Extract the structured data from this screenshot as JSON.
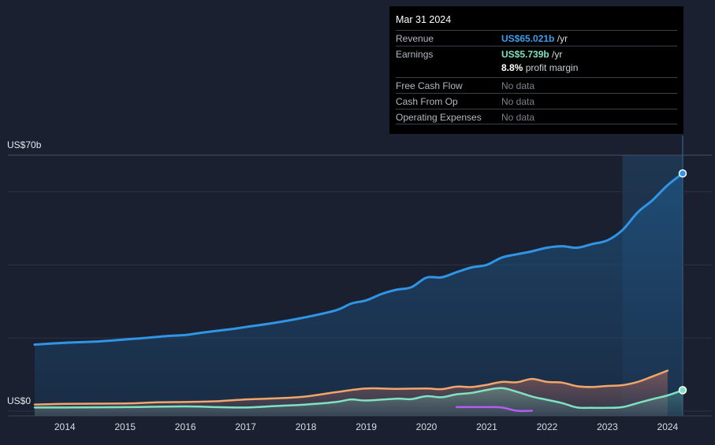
{
  "tooltip": {
    "date": "Mar 31 2024",
    "revenue_label": "Revenue",
    "revenue_value": "US$65.021b",
    "revenue_unit": "/yr",
    "earnings_label": "Earnings",
    "earnings_value": "US$5.739b",
    "earnings_unit": "/yr",
    "profit_margin_value": "8.8%",
    "profit_margin_label": "profit margin",
    "fcf_label": "Free Cash Flow",
    "fcf_value": "No data",
    "cfo_label": "Cash From Op",
    "cfo_value": "No data",
    "opex_label": "Operating Expenses",
    "opex_value": "No data"
  },
  "colors": {
    "background": "#1a2030",
    "revenue": "#2f95e4",
    "earnings": "#7fe3c2",
    "operating_expenses": "#f2a66a",
    "free_cash_flow": "#b45ef0",
    "forecast_band": "#233d5a"
  },
  "chart_data": {
    "type": "area",
    "y_tick_labels": [
      "US$70b",
      "US$0"
    ],
    "ylim": [
      0,
      70
    ],
    "xlim": [
      2013.5,
      2024.25
    ],
    "x_ticks": [
      2014,
      2015,
      2016,
      2017,
      2018,
      2019,
      2020,
      2021,
      2022,
      2023,
      2024
    ],
    "x_tick_labels": [
      "2014",
      "2015",
      "2016",
      "2017",
      "2018",
      "2019",
      "2020",
      "2021",
      "2022",
      "2023",
      "2024"
    ],
    "gridlines": [
      70,
      60,
      40,
      20,
      0
    ],
    "highlight_from": 2023.25,
    "grid": true,
    "series": [
      {
        "name": "Revenue",
        "points": [
          [
            2013.5,
            18.2
          ],
          [
            2014.0,
            18.7
          ],
          [
            2014.5,
            19.0
          ],
          [
            2015.0,
            19.6
          ],
          [
            2015.25,
            19.9
          ],
          [
            2015.75,
            20.6
          ],
          [
            2016.0,
            20.8
          ],
          [
            2016.25,
            21.4
          ],
          [
            2016.75,
            22.4
          ],
          [
            2017.0,
            23.0
          ],
          [
            2017.5,
            24.2
          ],
          [
            2018.0,
            25.7
          ],
          [
            2018.5,
            27.6
          ],
          [
            2018.75,
            29.4
          ],
          [
            2019.0,
            30.3
          ],
          [
            2019.25,
            32.0
          ],
          [
            2019.5,
            33.2
          ],
          [
            2019.75,
            33.9
          ],
          [
            2020.0,
            36.5
          ],
          [
            2020.25,
            36.6
          ],
          [
            2020.5,
            38.0
          ],
          [
            2020.75,
            39.3
          ],
          [
            2021.0,
            40.0
          ],
          [
            2021.25,
            42.0
          ],
          [
            2021.5,
            42.9
          ],
          [
            2021.75,
            43.7
          ],
          [
            2022.0,
            44.7
          ],
          [
            2022.25,
            45.1
          ],
          [
            2022.5,
            44.7
          ],
          [
            2022.75,
            45.7
          ],
          [
            2023.0,
            46.7
          ],
          [
            2023.25,
            49.5
          ],
          [
            2023.5,
            54.3
          ],
          [
            2023.75,
            57.7
          ],
          [
            2024.0,
            61.8
          ],
          [
            2024.25,
            65.0
          ]
        ]
      },
      {
        "name": "Operating Expenses",
        "points": [
          [
            2013.5,
            1.8
          ],
          [
            2014.0,
            2.0
          ],
          [
            2015.0,
            2.1
          ],
          [
            2015.5,
            2.4
          ],
          [
            2016.0,
            2.5
          ],
          [
            2016.5,
            2.7
          ],
          [
            2017.0,
            3.2
          ],
          [
            2017.5,
            3.5
          ],
          [
            2018.0,
            4.0
          ],
          [
            2018.5,
            5.2
          ],
          [
            2019.0,
            6.2
          ],
          [
            2019.5,
            6.1
          ],
          [
            2020.0,
            6.2
          ],
          [
            2020.25,
            6.0
          ],
          [
            2020.5,
            6.7
          ],
          [
            2020.75,
            6.6
          ],
          [
            2021.0,
            7.2
          ],
          [
            2021.25,
            8.0
          ],
          [
            2021.5,
            7.9
          ],
          [
            2021.75,
            8.8
          ],
          [
            2022.0,
            8.0
          ],
          [
            2022.25,
            7.8
          ],
          [
            2022.5,
            6.8
          ],
          [
            2022.75,
            6.6
          ],
          [
            2023.0,
            6.9
          ],
          [
            2023.25,
            7.1
          ],
          [
            2023.5,
            8.0
          ],
          [
            2023.75,
            9.5
          ],
          [
            2024.0,
            11.1
          ]
        ]
      },
      {
        "name": "Earnings",
        "points": [
          [
            2013.5,
            1.0
          ],
          [
            2014.0,
            1.0
          ],
          [
            2015.0,
            1.1
          ],
          [
            2016.0,
            1.3
          ],
          [
            2016.5,
            1.1
          ],
          [
            2017.0,
            1.0
          ],
          [
            2017.5,
            1.4
          ],
          [
            2018.0,
            1.8
          ],
          [
            2018.5,
            2.5
          ],
          [
            2018.75,
            3.2
          ],
          [
            2019.0,
            2.9
          ],
          [
            2019.5,
            3.4
          ],
          [
            2019.75,
            3.3
          ],
          [
            2020.0,
            4.1
          ],
          [
            2020.25,
            3.8
          ],
          [
            2020.5,
            4.6
          ],
          [
            2020.75,
            5.0
          ],
          [
            2021.0,
            5.8
          ],
          [
            2021.25,
            6.3
          ],
          [
            2021.5,
            5.3
          ],
          [
            2021.75,
            4.0
          ],
          [
            2022.0,
            3.1
          ],
          [
            2022.25,
            2.2
          ],
          [
            2022.5,
            1.0
          ],
          [
            2022.75,
            0.9
          ],
          [
            2023.0,
            0.9
          ],
          [
            2023.25,
            1.1
          ],
          [
            2023.5,
            2.2
          ],
          [
            2023.75,
            3.3
          ],
          [
            2024.0,
            4.3
          ],
          [
            2024.25,
            5.739
          ]
        ]
      },
      {
        "name": "Free Cash Flow",
        "points": [
          [
            2020.5,
            1.1
          ],
          [
            2020.75,
            1.1
          ],
          [
            2021.0,
            1.1
          ],
          [
            2021.25,
            1.0
          ],
          [
            2021.5,
            0.1
          ],
          [
            2021.75,
            0.1
          ]
        ]
      }
    ]
  }
}
